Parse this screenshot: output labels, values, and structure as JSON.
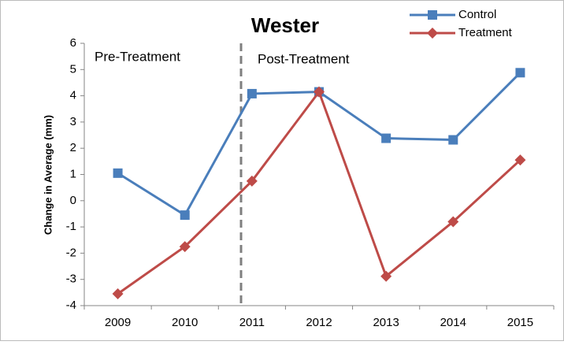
{
  "chart_data": {
    "type": "line",
    "title": "Wester",
    "y_label": "Change in Average (mm)",
    "annotations": [
      "Pre-Treatment",
      "Post-Treatment"
    ],
    "categories": [
      "2009",
      "2010",
      "2011",
      "2012",
      "2013",
      "2014",
      "2015"
    ],
    "series": [
      {
        "name": "Control",
        "color": "#4a7ebb",
        "marker": "square",
        "values": [
          1.05,
          -0.55,
          4.08,
          4.15,
          2.38,
          2.32,
          4.88
        ]
      },
      {
        "name": "Treatment",
        "color": "#be4b48",
        "marker": "diamond",
        "values": [
          -3.55,
          -1.75,
          0.75,
          4.15,
          -2.88,
          -0.8,
          1.55
        ]
      }
    ],
    "ylim": [
      -4,
      6
    ],
    "yticks": [
      -4,
      -3,
      -2,
      -1,
      0,
      1,
      2,
      3,
      4,
      5,
      6
    ],
    "grid": false,
    "legend": "top-right"
  }
}
